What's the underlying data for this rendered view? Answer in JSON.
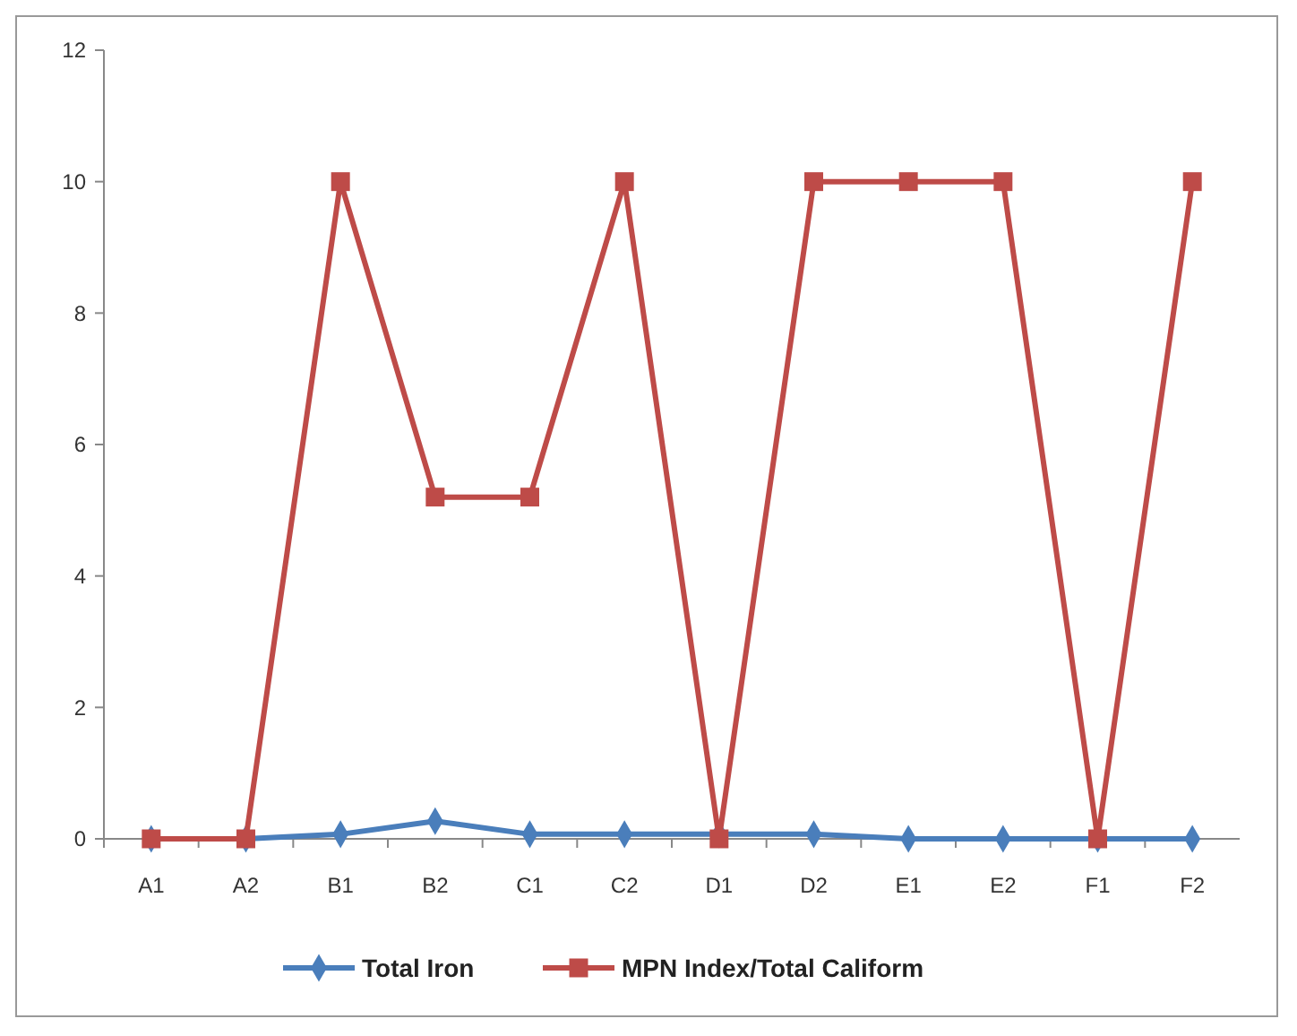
{
  "chart_data": {
    "type": "line",
    "categories": [
      "A1",
      "A2",
      "B1",
      "B2",
      "C1",
      "C2",
      "D1",
      "D2",
      "E1",
      "E2",
      "F1",
      "F2"
    ],
    "series": [
      {
        "name": "Total Iron",
        "color": "#4a7ebb",
        "marker": "diamond",
        "values": [
          0,
          0,
          0.07,
          0.27,
          0.07,
          0.07,
          0.07,
          0.07,
          0,
          0,
          0,
          0
        ]
      },
      {
        "name": "MPN Index/Total Caliform",
        "color": "#be4b48",
        "marker": "square",
        "values": [
          0,
          0,
          10,
          5.2,
          5.2,
          10,
          0,
          10,
          10,
          10,
          0,
          10
        ]
      }
    ],
    "ylim": [
      0,
      12
    ],
    "yticks": [
      0,
      2,
      4,
      6,
      8,
      10,
      12
    ],
    "grid": false,
    "legend": "bottom"
  }
}
